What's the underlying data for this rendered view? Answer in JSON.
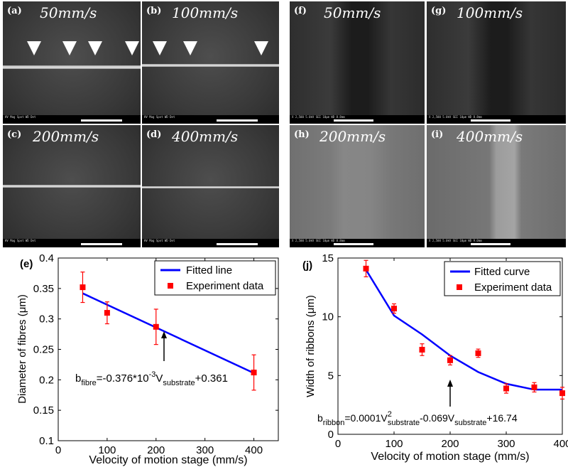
{
  "sem_panels": [
    {
      "id": "a",
      "label": "(a)",
      "speed": "50mm/s",
      "databar": "HV   Mag  Spot  WD   Det"
    },
    {
      "id": "b",
      "label": "(b)",
      "speed": "100mm/s",
      "databar": "HV   Mag  Spot  WD   Det"
    },
    {
      "id": "c",
      "label": "(c)",
      "speed": "200mm/s",
      "databar": "HV   Mag  Spot  WD   Det"
    },
    {
      "id": "d",
      "label": "(d)",
      "speed": "400mm/s",
      "databar": "HV   Mag  Spot  WD   Det"
    },
    {
      "id": "f",
      "label": "(f)",
      "speed": "50mm/s",
      "databar": "X 2,500   5.0kV SEI        10μm  WD 8.8mm"
    },
    {
      "id": "g",
      "label": "(g)",
      "speed": "100mm/s",
      "databar": "X 2,500   5.0kV SEI        10μm  WD 8.8mm"
    },
    {
      "id": "h",
      "label": "(h)",
      "speed": "200mm/s",
      "databar": "X 2,500   5.0kV SEI        10μm  WD 8.8mm"
    },
    {
      "id": "i",
      "label": "(i)",
      "speed": "400mm/s",
      "databar": "X 2,500   5.0kV SEI        10μm  WD 9.0mm"
    }
  ],
  "chart_data": [
    {
      "type": "scatter",
      "panel_label": "(e)",
      "xlabel": "Velocity of motion stage (mm/s)",
      "ylabel": "Diameter of fibres (μm)",
      "xlim": [
        0,
        450
      ],
      "ylim": [
        0.1,
        0.4
      ],
      "xticks": [
        0,
        100,
        200,
        300,
        400
      ],
      "yticks": [
        0.1,
        0.15,
        0.2,
        0.25,
        0.3,
        0.35,
        0.4
      ],
      "series": [
        {
          "name": "Experiment data",
          "color": "#ff0000",
          "x": [
            50,
            100,
            200,
            400
          ],
          "y": [
            0.352,
            0.31,
            0.287,
            0.212
          ],
          "err": [
            0.025,
            0.018,
            0.029,
            0.029
          ]
        },
        {
          "name": "Fitted line",
          "color": "#0000ff",
          "x": [
            50,
            400
          ],
          "y": [
            0.342,
            0.211
          ]
        }
      ],
      "legend": "top-right",
      "annotation": {
        "text": "b_fibre=-0.376*10^-3 V_substrate+0.361",
        "x": 220,
        "y": 0.285
      }
    },
    {
      "type": "scatter",
      "panel_label": "(j)",
      "xlabel": "Velocity of motion stage (mm/s)",
      "ylabel": "Width of ribbons (μm)",
      "xlim": [
        0,
        400
      ],
      "ylim": [
        0,
        15
      ],
      "xticks": [
        0,
        100,
        200,
        300,
        400
      ],
      "yticks": [
        0,
        5,
        10,
        15
      ],
      "series": [
        {
          "name": "Experiment data",
          "color": "#ff0000",
          "x": [
            50,
            100,
            150,
            200,
            250,
            300,
            350,
            400
          ],
          "y": [
            14.1,
            10.7,
            7.2,
            6.3,
            6.9,
            3.9,
            4.0,
            3.5
          ],
          "err": [
            0.7,
            0.4,
            0.5,
            0.4,
            0.35,
            0.4,
            0.4,
            0.5
          ]
        },
        {
          "name": "Fitted curve",
          "color": "#0000ff",
          "x": [
            50,
            100,
            150,
            200,
            250,
            300,
            350,
            400
          ],
          "y": [
            14.0,
            10.1,
            8.5,
            6.7,
            5.3,
            4.3,
            3.8,
            3.8
          ]
        }
      ],
      "legend": "top-right",
      "annotation": {
        "text": "b_ribbon=0.0001V²_substrate-0.069V_substrate+16.74",
        "x": 230,
        "y": 5.2
      }
    }
  ]
}
